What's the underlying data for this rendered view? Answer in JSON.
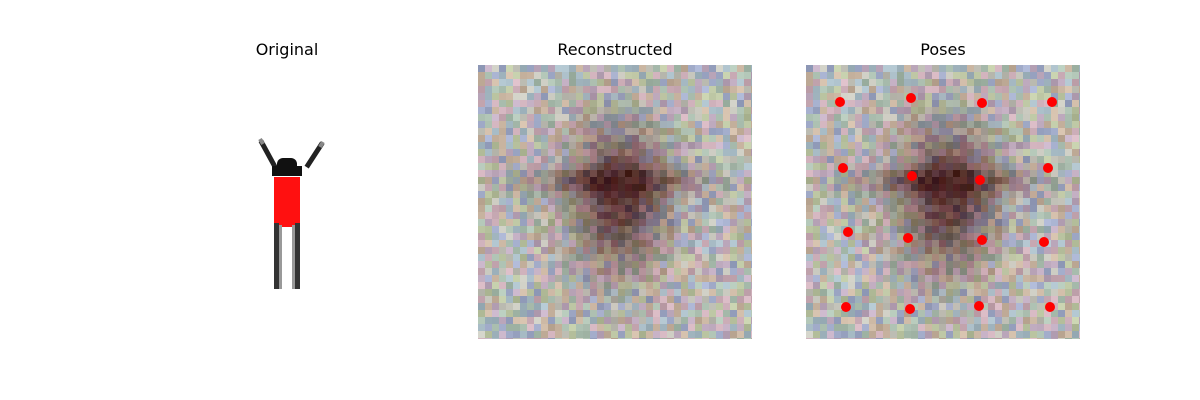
{
  "figure": {
    "panels": [
      {
        "title": "Original"
      },
      {
        "title": "Reconstructed"
      },
      {
        "title": "Poses"
      }
    ]
  },
  "colors": {
    "figure_shirt": "#ff1010",
    "figure_dark": "#111111",
    "pose_marker": "#ff0000",
    "noise_base": "#b8b8b0"
  },
  "poses": {
    "marker_count": 16,
    "grid": "4x4"
  }
}
